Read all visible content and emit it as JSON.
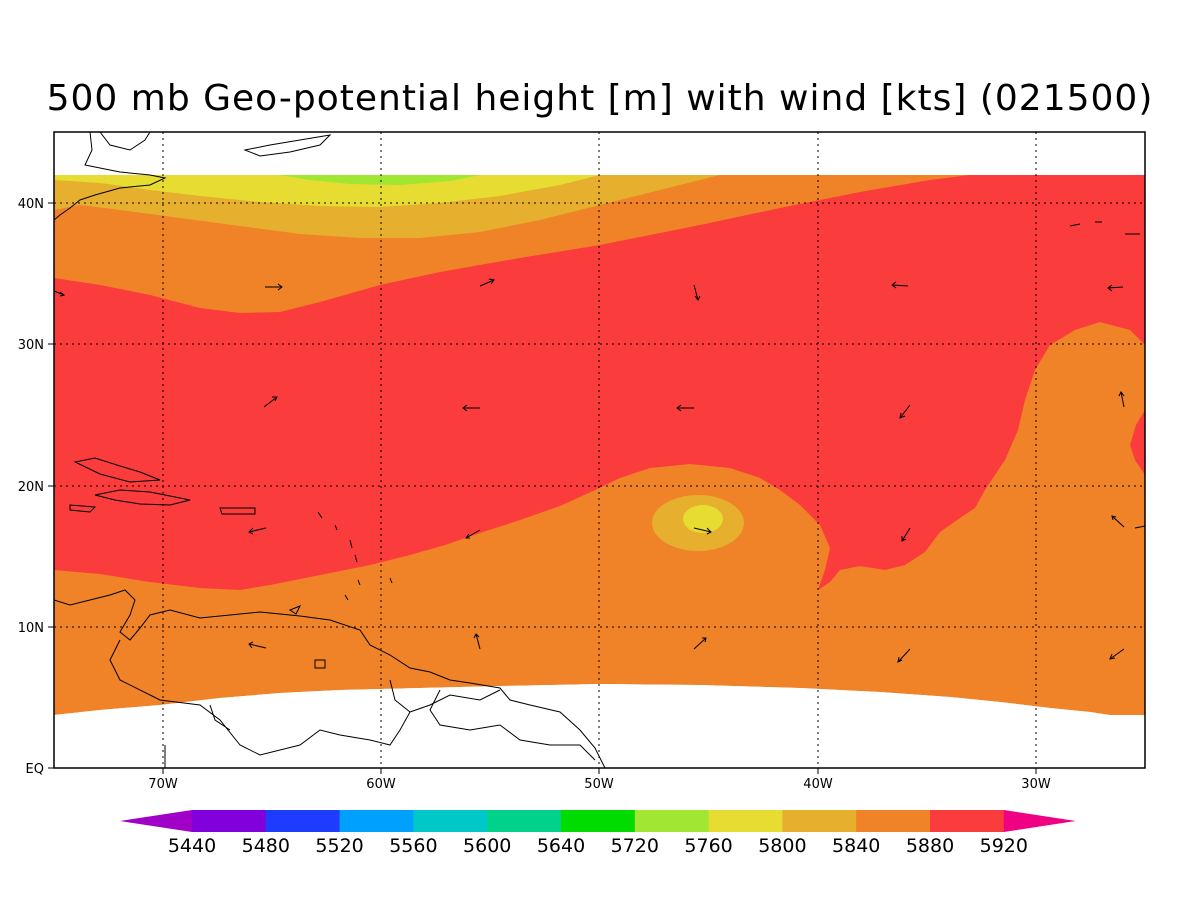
{
  "title": "500 mb Geo-potential height [m] with wind [kts] (021500)",
  "lon_labels": [
    "70W",
    "60W",
    "50W",
    "40W",
    "30W"
  ],
  "lat_labels": [
    "40N",
    "30N",
    "20N",
    "10N",
    "EQ"
  ],
  "colorbar": {
    "labels": [
      "5440",
      "5480",
      "5520",
      "5560",
      "5600",
      "5640",
      "5720",
      "5760",
      "5800",
      "5840",
      "5880",
      "5920"
    ],
    "colors": [
      "#a000c8",
      "#8200dc",
      "#1e3cff",
      "#00a0ff",
      "#00c8c8",
      "#00d28c",
      "#00dc00",
      "#a0e632",
      "#e6dc32",
      "#e6af2d",
      "#f08228",
      "#fa3c3c",
      "#f00082"
    ]
  },
  "fill_colors": {
    "c5720": "#a0e632",
    "c5760": "#e6dc32",
    "c5800": "#e6af2d",
    "c5840": "#f08228",
    "c5880": "#fa3c3c"
  }
}
